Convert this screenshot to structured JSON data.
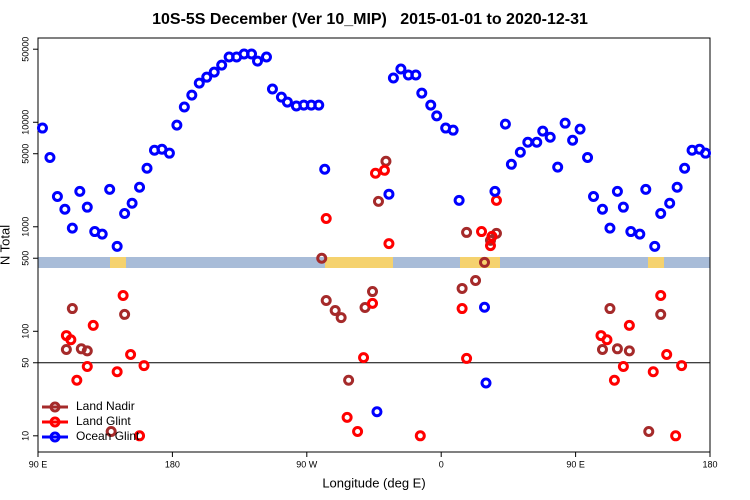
{
  "chart_data": {
    "type": "scatter",
    "title": "10S-5S December (Ver 10_MIP)   2015-01-01 to 2020-12-31",
    "x_label": "Longitude (deg E)",
    "y_label": "N Total",
    "log_y": true,
    "legend": "bottom-left",
    "hline": 50,
    "xlim": [
      90,
      540
    ],
    "ylim": [
      7,
      64000
    ],
    "xticks": [
      {
        "value": 90,
        "label": "90 E"
      },
      180,
      {
        "value": 270,
        "label": "90 W"
      },
      {
        "value": 360,
        "label": "0"
      },
      {
        "value": 450,
        "label": "90 E"
      },
      {
        "value": 540,
        "label": "180"
      }
    ],
    "yticks": [
      10,
      50,
      100,
      500,
      1000,
      5000,
      10000,
      50000
    ],
    "series": [
      {
        "name": "Land Nadir",
        "color": "#a52a2a",
        "x": [
          109,
          113,
          119,
          123,
          139,
          148,
          280,
          283,
          289,
          293,
          298,
          309,
          314,
          318,
          323,
          374,
          377,
          383,
          389,
          393,
          397,
          468,
          473,
          478,
          486,
          499,
          507
        ],
        "values": [
          67,
          165,
          68,
          65,
          11,
          145,
          500,
          197,
          158,
          135,
          34,
          169,
          240,
          1750,
          4240,
          257,
          883,
          306,
          456,
          741,
          865,
          67,
          165,
          68,
          65,
          11,
          145
        ]
      },
      {
        "name": "Land Glint",
        "color": "#ff0000",
        "x": [
          109,
          112,
          116,
          123,
          127,
          143,
          147,
          152,
          158,
          161,
          283,
          297,
          304,
          308,
          314,
          316,
          322,
          325,
          346,
          374,
          377,
          387,
          393,
          394,
          397,
          467,
          471,
          476,
          482,
          486,
          502,
          507,
          511,
          517,
          521
        ],
        "values": [
          91,
          83,
          34,
          46,
          114,
          41,
          220,
          60,
          10,
          47,
          1200,
          15,
          11,
          56,
          185,
          3250,
          3470,
          690,
          10,
          165,
          55,
          900,
          660,
          810,
          1790,
          91,
          83,
          34,
          46,
          114,
          41,
          220,
          60,
          10,
          47
        ]
      },
      {
        "name": "Ocean Glint",
        "color": "#0000ff",
        "x": [
          93,
          98,
          103,
          108,
          113,
          118,
          123,
          128,
          133,
          138,
          143,
          148,
          153,
          158,
          163,
          168,
          173,
          178,
          183,
          188,
          193,
          198,
          203,
          208,
          213,
          218,
          223,
          228,
          233,
          237,
          243,
          247,
          253,
          257,
          263,
          268,
          273,
          278,
          282,
          317,
          325,
          328,
          333,
          338,
          343,
          347,
          353,
          357,
          363,
          368,
          372,
          389,
          390,
          396,
          403,
          407,
          413,
          418,
          424,
          428,
          433,
          438,
          443,
          448,
          453,
          458,
          462,
          468,
          473,
          478,
          482,
          487,
          493,
          497,
          503,
          507,
          513,
          518,
          523,
          528,
          533,
          537
        ],
        "values": [
          8800,
          4600,
          1950,
          1470,
          970,
          2180,
          1540,
          900,
          850,
          2280,
          650,
          1340,
          1680,
          2390,
          3630,
          5400,
          5520,
          5060,
          9380,
          14000,
          18200,
          23700,
          27000,
          30200,
          35200,
          42100,
          42100,
          45000,
          45000,
          38500,
          42100,
          20800,
          17400,
          15600,
          14300,
          14600,
          14600,
          14600,
          3550,
          17,
          2050,
          26500,
          32300,
          28300,
          28300,
          19000,
          14600,
          11500,
          8800,
          8400,
          1790,
          170,
          32,
          2180,
          9600,
          3960,
          5160,
          6440,
          6440,
          8220,
          7190,
          3720,
          9800,
          6730,
          8590,
          4600,
          1950,
          1470,
          970,
          2180,
          1540,
          900,
          850,
          2280,
          650,
          1340,
          1680,
          2390,
          3630,
          5400,
          5520,
          5060
        ]
      }
    ]
  }
}
